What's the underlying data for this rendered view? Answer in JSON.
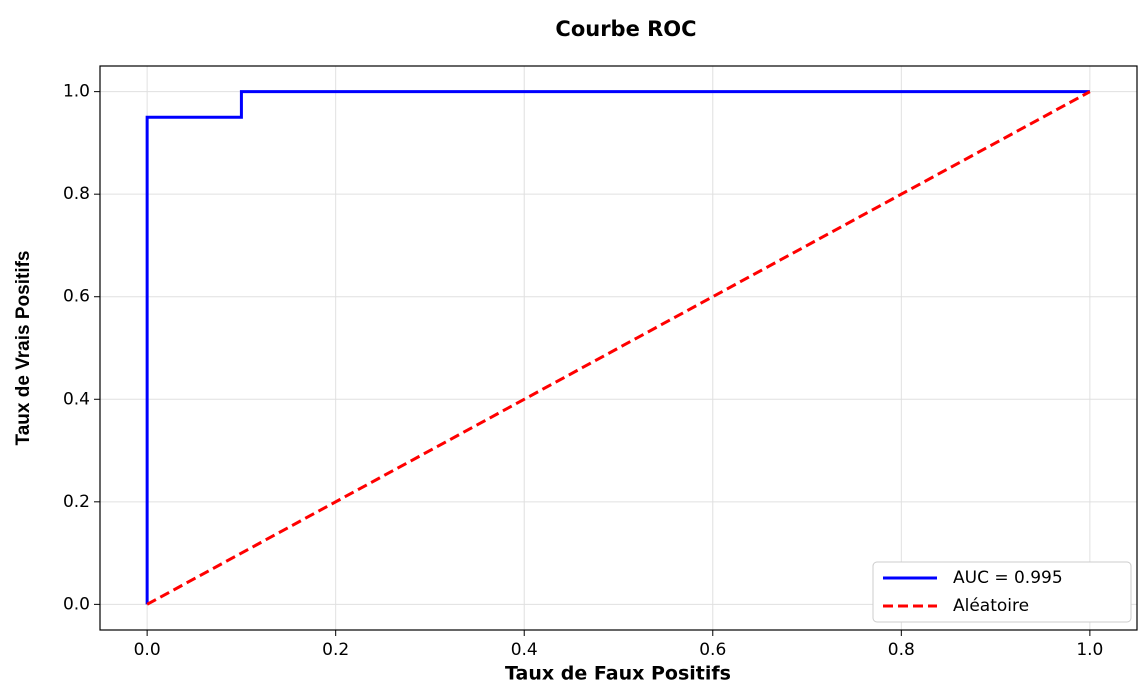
{
  "chart_data": {
    "type": "line",
    "title": "Courbe ROC",
    "xlabel": "Taux de Faux Positifs",
    "ylabel": "Taux de Vrais Positifs",
    "series": [
      {
        "name": "AUC = 0.995",
        "color": "#0000ff",
        "style": "solid",
        "x": [
          0,
          0,
          0.1,
          0.1,
          1
        ],
        "values": [
          0,
          0.95,
          0.95,
          1,
          1
        ]
      },
      {
        "name": "Aléatoire",
        "color": "#ff0000",
        "style": "dashed",
        "x": [
          0,
          1
        ],
        "values": [
          0,
          1
        ]
      }
    ],
    "xlim": [
      -0.05,
      1.05
    ],
    "ylim": [
      -0.05,
      1.05
    ],
    "xticks": [
      {
        "value": 0,
        "label": "0.0"
      },
      0.2,
      0.4,
      0.6,
      0.8,
      {
        "value": 1,
        "label": "1.0"
      }
    ],
    "yticks": [
      {
        "value": 0,
        "label": "0.0"
      },
      0.2,
      0.4,
      0.6,
      0.8,
      {
        "value": 1,
        "label": "1.0"
      }
    ],
    "grid": true,
    "legend": "lower right"
  }
}
